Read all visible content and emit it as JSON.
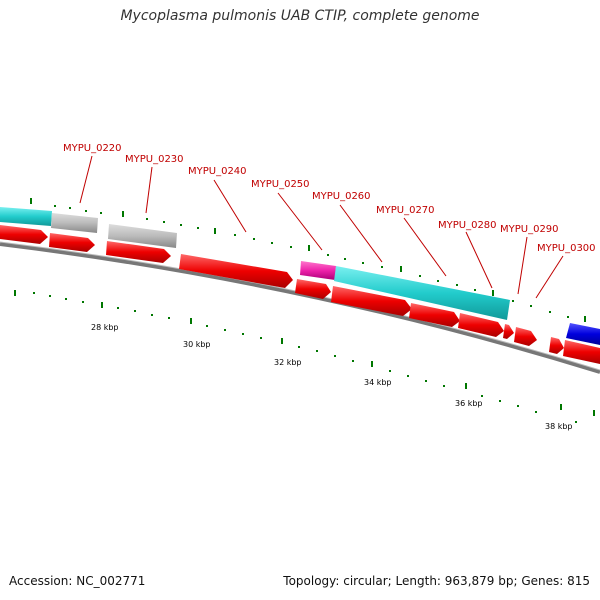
{
  "title": "Mycoplasma pulmonis UAB CTIP, complete genome",
  "footer": {
    "accession": "Accession: NC_002771",
    "topology": "Topology: circular; Length: 963,879 bp; Genes: 815"
  },
  "gene_labels": [
    "MYPU_0220",
    "MYPU_0230",
    "MYPU_0240",
    "MYPU_0250",
    "MYPU_0260",
    "MYPU_0270",
    "MYPU_0280",
    "MYPU_0290",
    "MYPU_0300"
  ],
  "kbp_labels": [
    "28 kbp",
    "30 kbp",
    "32 kbp",
    "34 kbp",
    "36 kbp",
    "38 kbp"
  ],
  "colors": {
    "forward_gene": "#ee0000",
    "cyan_feature": "#22cccc",
    "gray_feature": "#bbbbbb",
    "magenta_feature": "#ee22aa",
    "blue_feature": "#0000dd",
    "backbone": "#888888",
    "tick": "#007700",
    "label": "#cc0000"
  }
}
